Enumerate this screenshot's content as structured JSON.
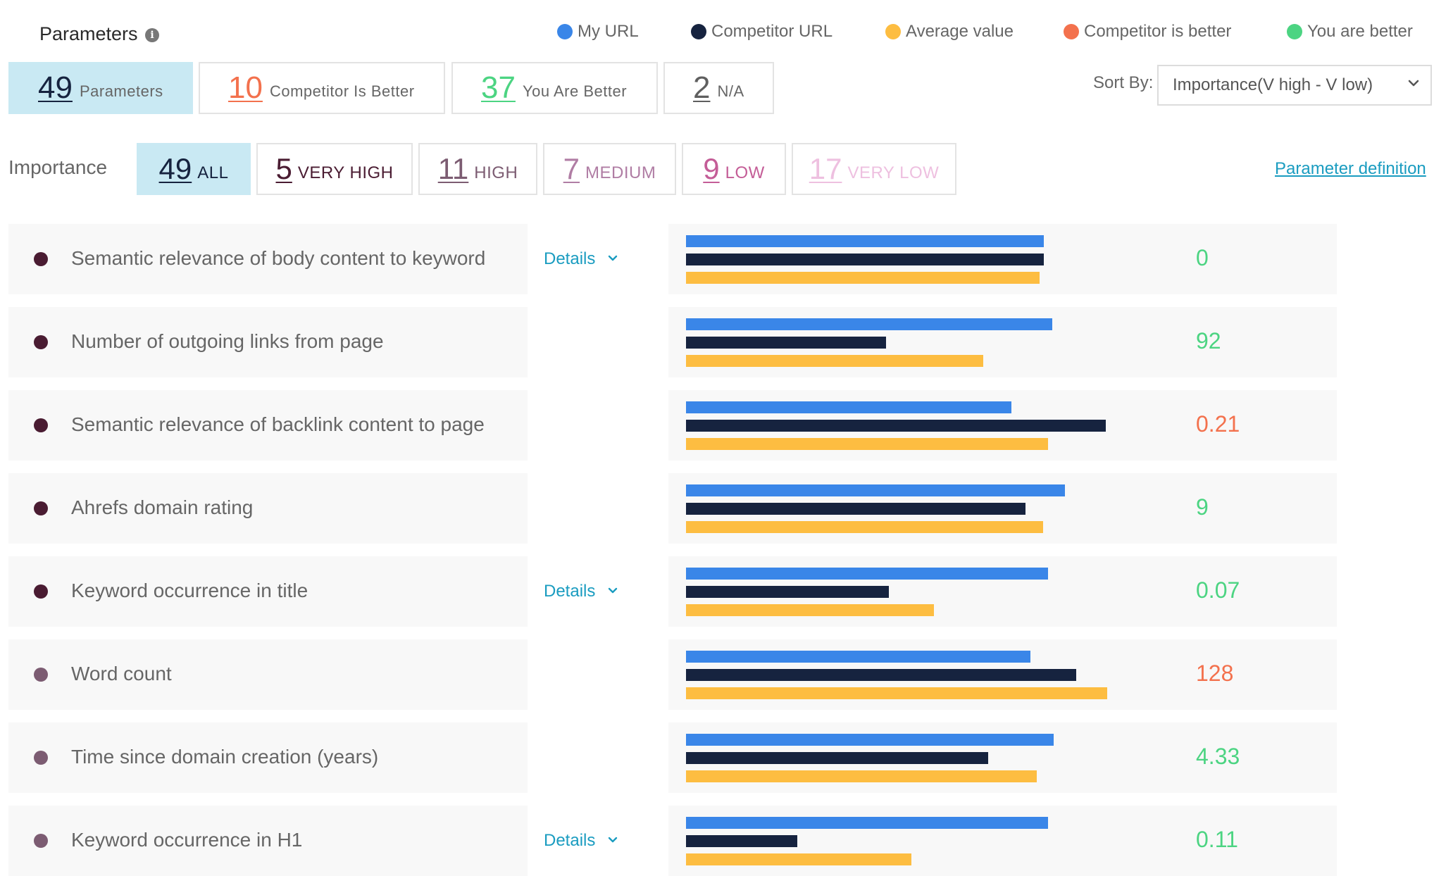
{
  "colors": {
    "my_url": "#3a86e8",
    "competitor_url": "#16233f",
    "average": "#fdbd41",
    "competitor_better": "#f3714d",
    "you_better": "#4cd482",
    "neutral": "#5f5f5f",
    "very_high": "#4a1c32",
    "high": "#7c5c72",
    "medium": "#b07da4",
    "low": "#c45d97",
    "very_low": "#eec0e0",
    "link": "#1a9cc0"
  },
  "header": {
    "title": "Parameters",
    "info_icon": "info-icon",
    "legend": [
      {
        "label": "My URL",
        "color": "#3a86e8"
      },
      {
        "label": "Competitor URL",
        "color": "#16233f"
      },
      {
        "label": "Average value",
        "color": "#fdbd41"
      },
      {
        "label": "Competitor is better",
        "color": "#f3714d"
      },
      {
        "label": "You are better",
        "color": "#4cd482"
      }
    ]
  },
  "summary": [
    {
      "count": "49",
      "label": "Parameters",
      "color": "#16233f",
      "active": true
    },
    {
      "count": "10",
      "label": "Competitor Is Better",
      "color": "#f3714d",
      "active": false
    },
    {
      "count": "37",
      "label": "You Are Better",
      "color": "#4cd482",
      "active": false
    },
    {
      "count": "2",
      "label": "N/A",
      "color": "#5f5f5f",
      "active": false
    }
  ],
  "sort": {
    "label": "Sort By:",
    "value": "Importance(V high - V low)",
    "icon": "chevron-down-icon"
  },
  "importance": {
    "label": "Importance",
    "filters": [
      {
        "count": "49",
        "label": "ALL",
        "color": "#16233f",
        "active": true
      },
      {
        "count": "5",
        "label": "VERY HIGH",
        "color": "#4a1c32",
        "active": false
      },
      {
        "count": "11",
        "label": "HIGH",
        "color": "#7c5c72",
        "active": false
      },
      {
        "count": "7",
        "label": "MEDIUM",
        "color": "#b07da4",
        "active": false
      },
      {
        "count": "9",
        "label": "LOW",
        "color": "#c45d97",
        "active": false
      },
      {
        "count": "17",
        "label": "VERY LOW",
        "color": "#eec0e0",
        "active": false
      }
    ],
    "definition_link": "Parameter definition"
  },
  "parameters": [
    {
      "name": "Semantic relevance of body content to keyword",
      "details": "Details",
      "value": "0",
      "status": "you_better",
      "bullet": "#4a1c32",
      "bars": [
        0.85,
        0.85,
        0.84
      ]
    },
    {
      "name": "Number of outgoing links from page",
      "details": "",
      "value": "92",
      "status": "you_better",
      "bullet": "#4a1c32",
      "bars": [
        0.87,
        0.475,
        0.705
      ]
    },
    {
      "name": "Semantic relevance of backlink content to page",
      "details": "",
      "value": "0.21",
      "status": "competitor_better",
      "bullet": "#4a1c32",
      "bars": [
        0.773,
        0.997,
        0.86
      ]
    },
    {
      "name": "Ahrefs domain rating",
      "details": "",
      "value": "9",
      "status": "you_better",
      "bullet": "#4a1c32",
      "bars": [
        0.9,
        0.806,
        0.847
      ]
    },
    {
      "name": "Keyword occurrence in title",
      "details": "Details",
      "value": "0.07",
      "status": "you_better",
      "bullet": "#4a1c32",
      "bars": [
        0.86,
        0.482,
        0.588
      ]
    },
    {
      "name": "Word count",
      "details": "",
      "value": "128",
      "status": "competitor_better",
      "bullet": "#7c5c72",
      "bars": [
        0.817,
        0.927,
        1.0
      ]
    },
    {
      "name": "Time since domain creation (years)",
      "details": "",
      "value": "4.33",
      "status": "you_better",
      "bullet": "#7c5c72",
      "bars": [
        0.873,
        0.717,
        0.833
      ]
    },
    {
      "name": "Keyword occurrence in H1",
      "details": "Details",
      "value": "0.11",
      "status": "you_better",
      "bullet": "#7c5c72",
      "bars": [
        0.86,
        0.264,
        0.535
      ]
    }
  ]
}
